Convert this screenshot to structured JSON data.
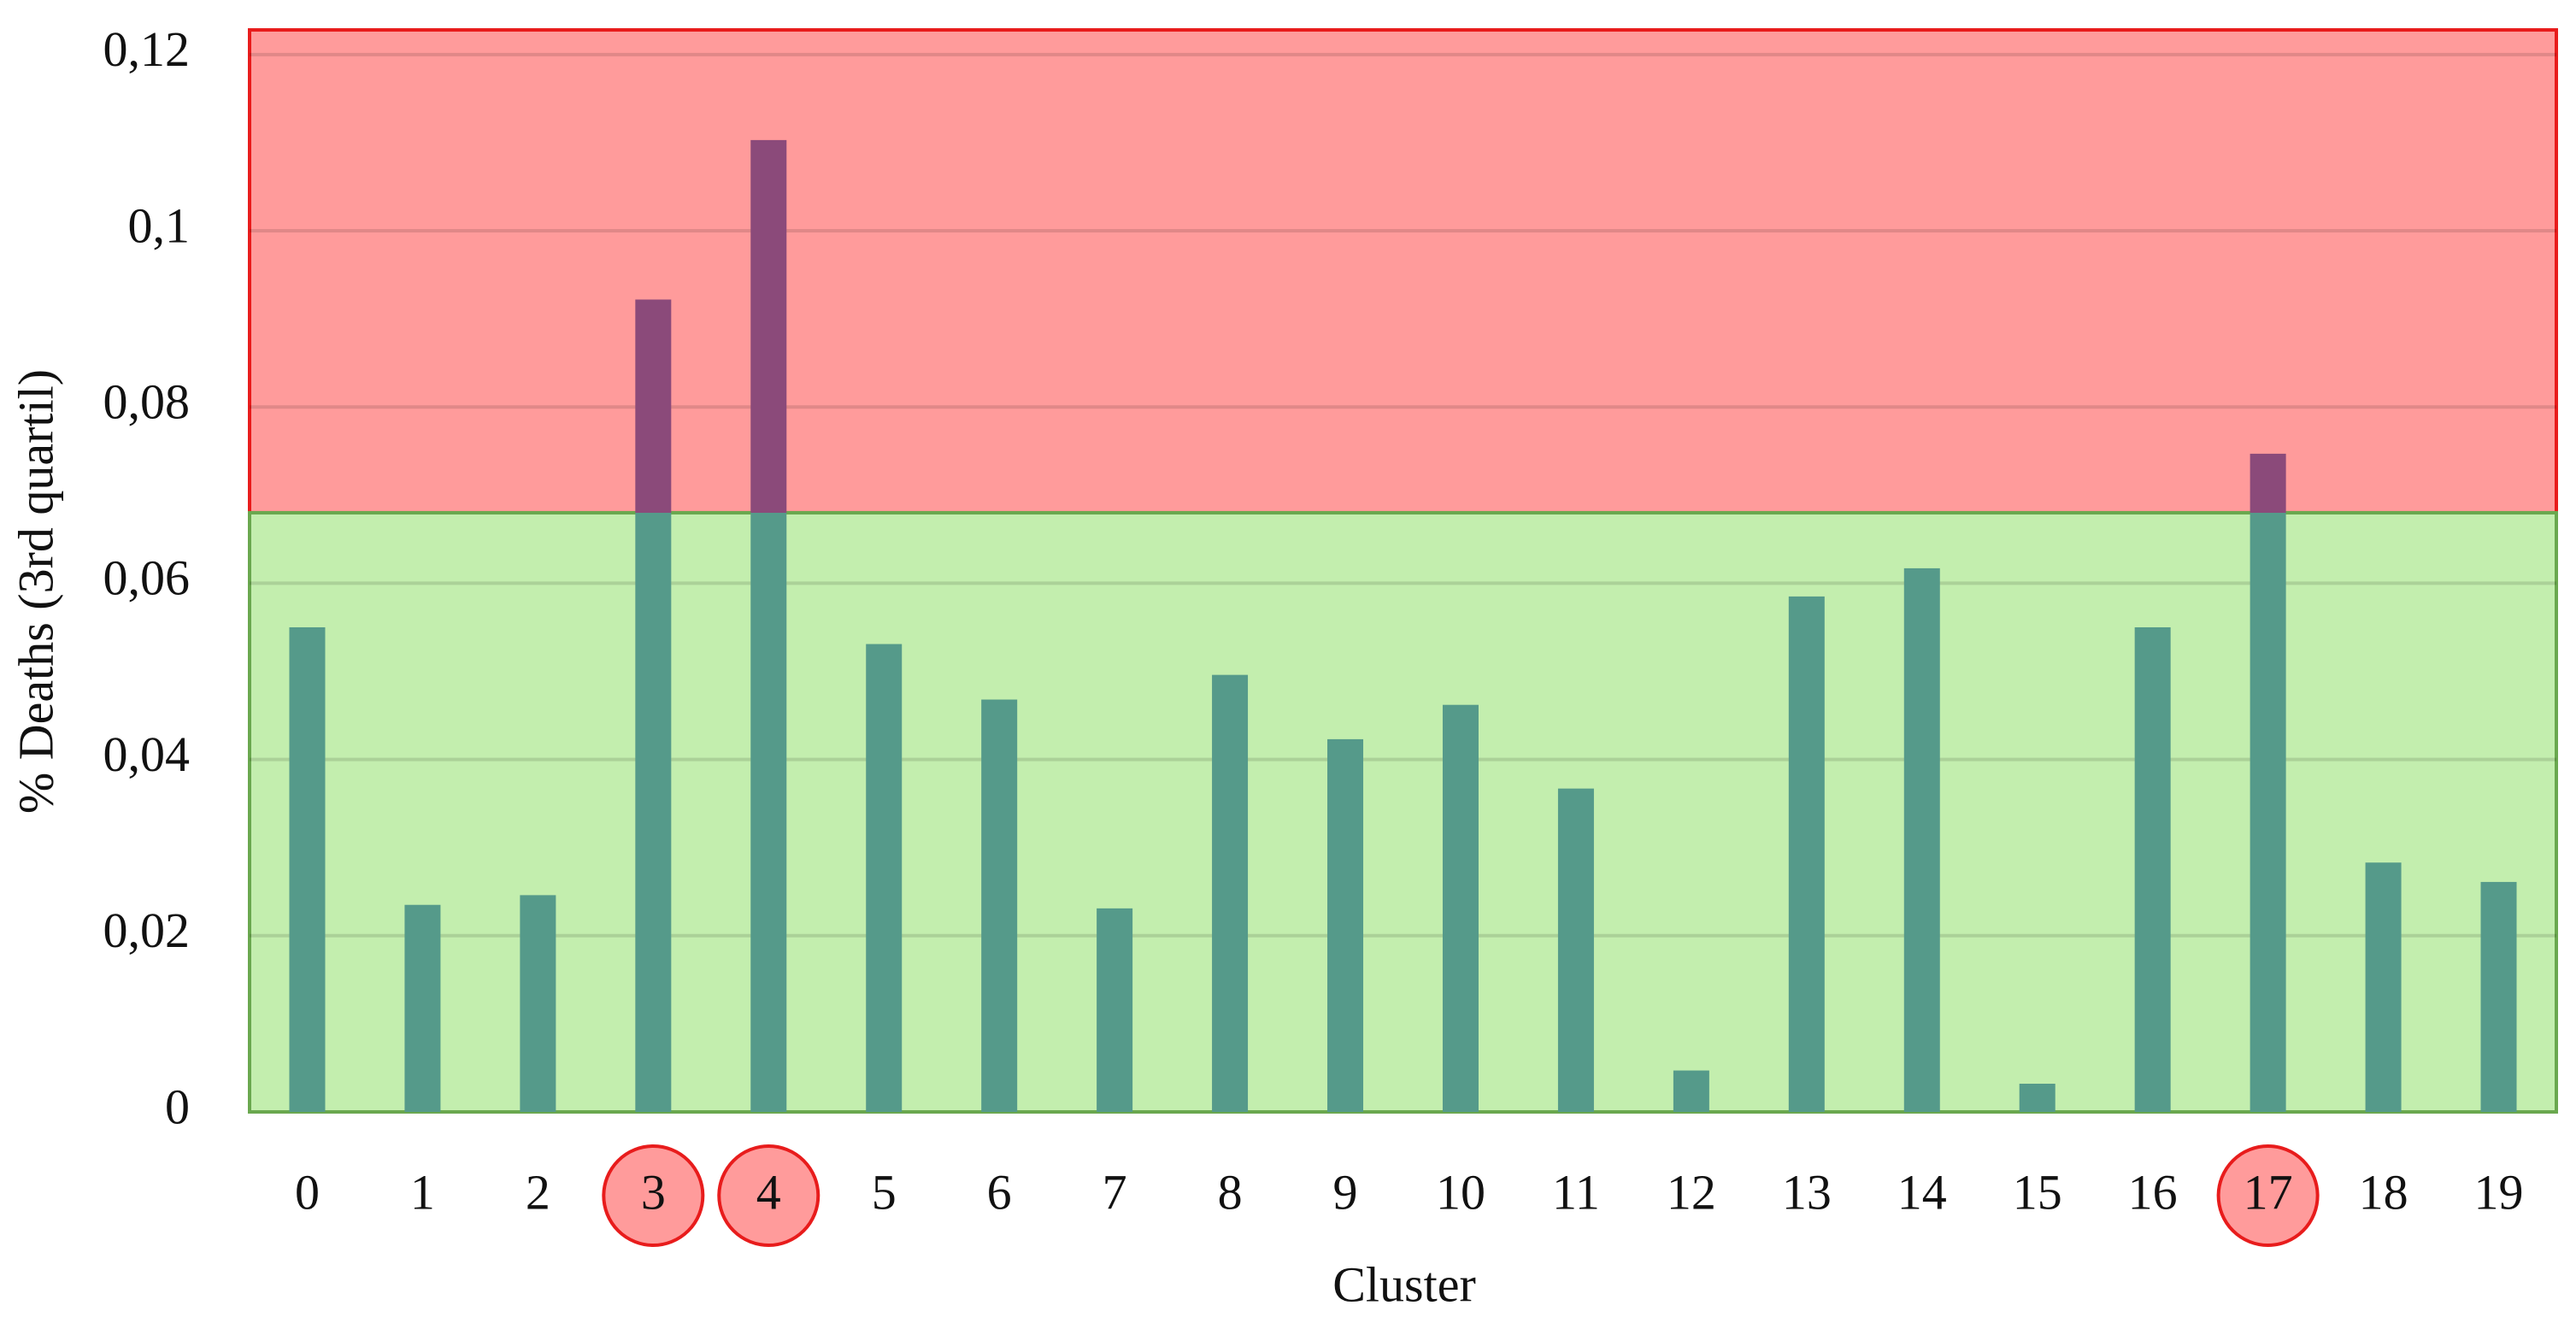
{
  "chart_data": {
    "type": "bar",
    "x_label": "Cluster",
    "y_label": "% Deaths (3rd quartil)",
    "categories": [
      "0",
      "1",
      "2",
      "3",
      "4",
      "5",
      "6",
      "7",
      "8",
      "9",
      "10",
      "11",
      "12",
      "13",
      "14",
      "15",
      "16",
      "17",
      "18",
      "19"
    ],
    "values": [
      0.055,
      0.0235,
      0.0246,
      0.0922,
      0.1103,
      0.0531,
      0.0468,
      0.0231,
      0.0496,
      0.0423,
      0.0462,
      0.0367,
      0.0047,
      0.0585,
      0.0617,
      0.0032,
      0.055,
      0.0747,
      0.0283,
      0.0261
    ],
    "color": "#559a8a",
    "above_threshold_color": "#8b4a7a",
    "threshold": 0.068,
    "safe_zone_color": "#c3eeae",
    "danger_zone_color": "#ff9b9b",
    "highlighted_categories": [
      "3",
      "4",
      "17"
    ],
    "ylim": [
      0,
      0.1228
    ],
    "yticks": [
      0,
      {
        "value": 0.02,
        "label": "0,02"
      },
      {
        "value": 0.04,
        "label": "0,04"
      },
      {
        "value": 0.06,
        "label": "0,06"
      },
      {
        "value": 0.08,
        "label": "0,08"
      },
      {
        "value": 0.1,
        "label": "0,1"
      },
      {
        "value": 0.12,
        "label": "0,12"
      }
    ],
    "grid": true
  }
}
